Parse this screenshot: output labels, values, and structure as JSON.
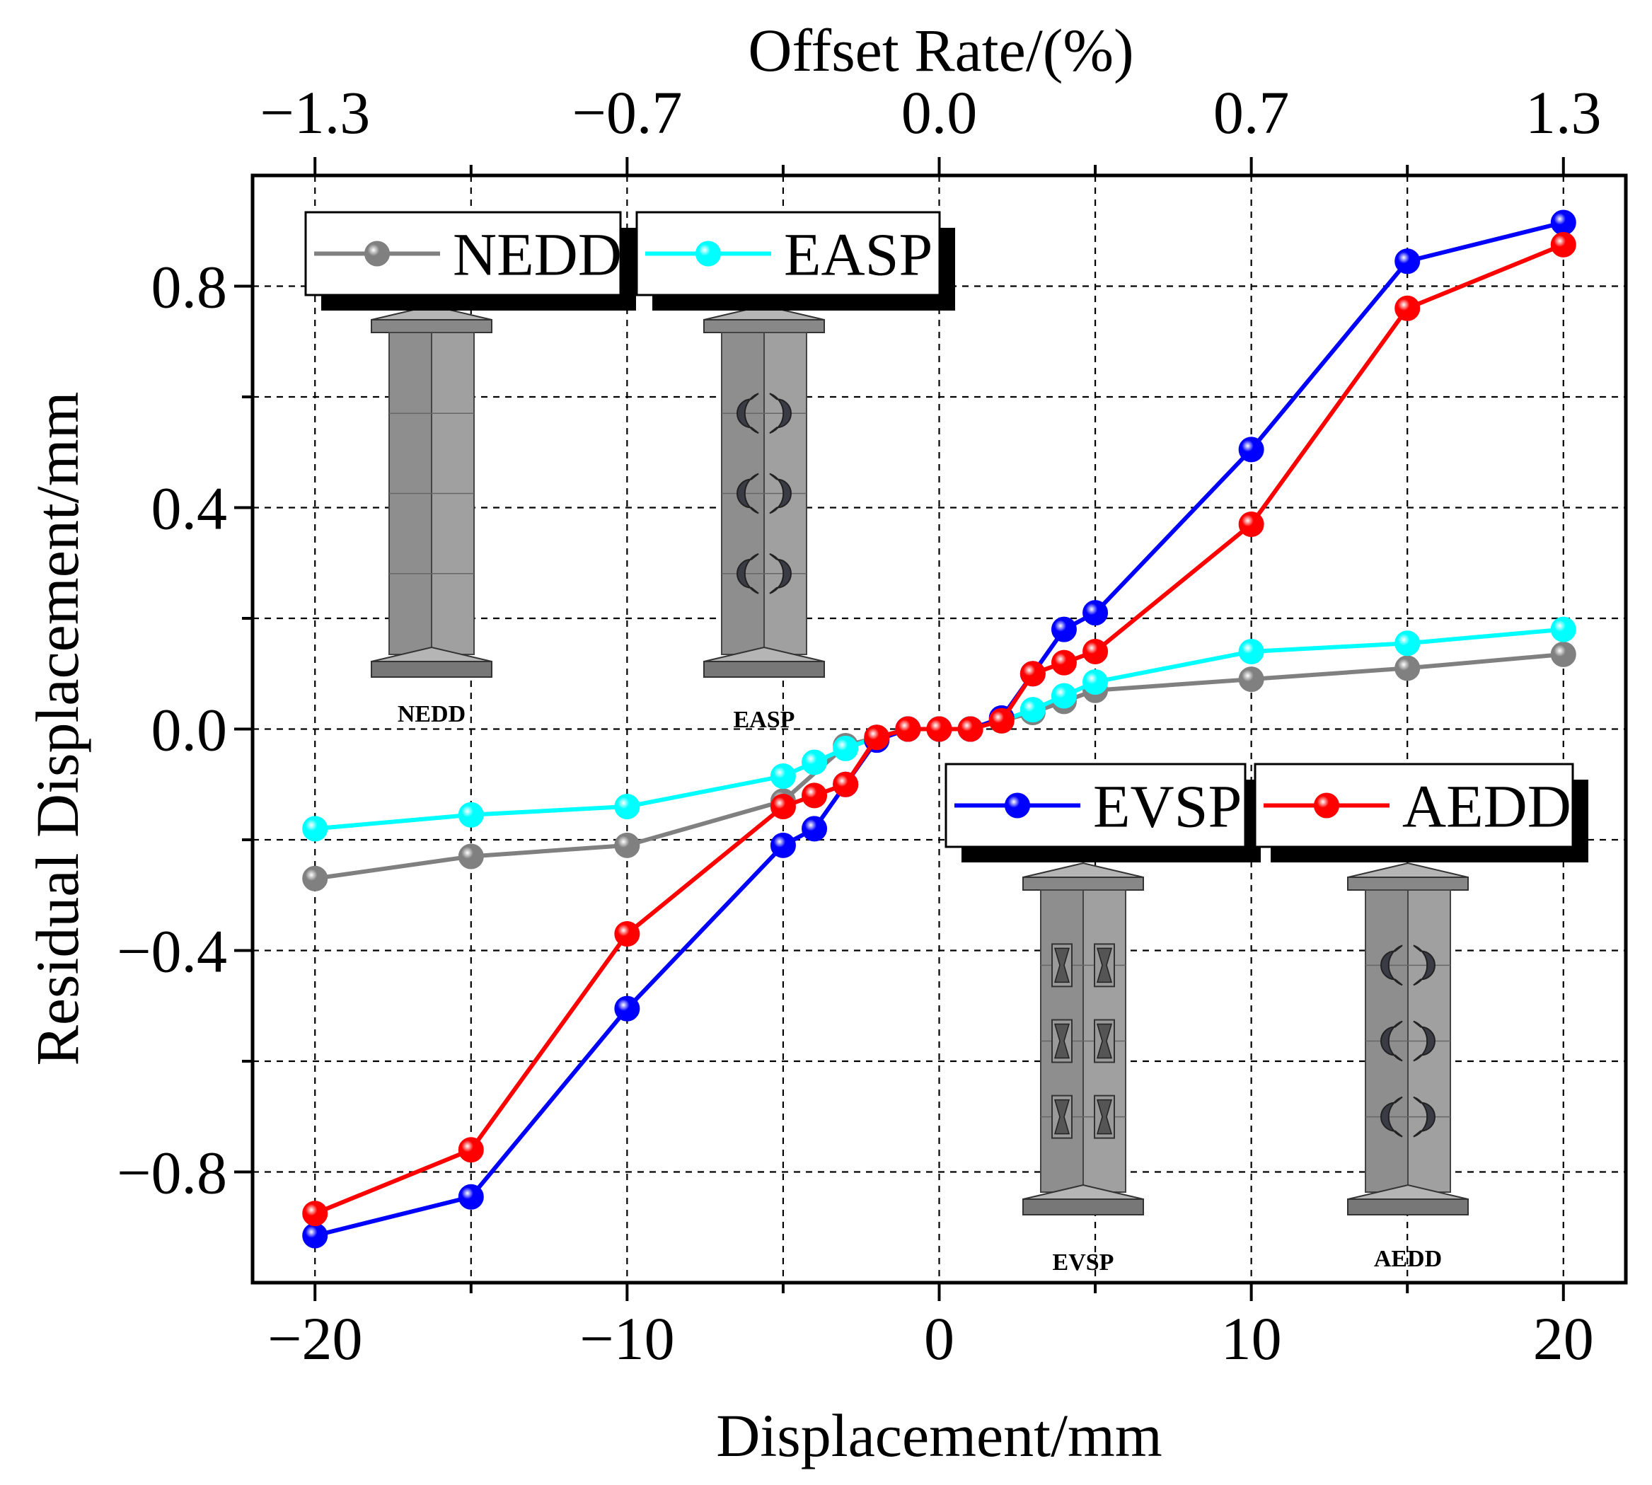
{
  "chart_data": {
    "type": "line",
    "xlabel": "Displacement/mm",
    "ylabel": "Residual Displacement/mm",
    "top_xlabel": "Offset Rate/(%)",
    "xlim": [
      -22,
      22
    ],
    "ylim": [
      -1.0,
      1.0
    ],
    "x_ticks": [
      -20,
      -10,
      0,
      10,
      20
    ],
    "x_tick_labels": [
      "−20",
      "−10",
      "0",
      "10",
      "20"
    ],
    "y_ticks": [
      -0.8,
      -0.4,
      0.0,
      0.4,
      0.8
    ],
    "y_tick_labels": [
      "−0.8",
      "−0.4",
      "0.0",
      "0.4",
      "0.8"
    ],
    "top_ticks": [
      -20,
      -10,
      0,
      10,
      20
    ],
    "top_tick_labels": [
      "−1.3",
      "−0.7",
      "0.0",
      "0.7",
      "1.3"
    ],
    "grid": true,
    "series": [
      {
        "name": "NEDD",
        "color": "#808080",
        "x": [
          -20,
          -15,
          -10,
          -5,
          -3,
          -2,
          -1,
          0,
          1,
          2,
          3,
          4,
          5,
          10,
          15,
          20
        ],
        "y": [
          -0.27,
          -0.23,
          -0.21,
          -0.13,
          -0.03,
          -0.015,
          0.0,
          0.0,
          0.0,
          0.015,
          0.03,
          0.05,
          0.07,
          0.09,
          0.11,
          0.135
        ]
      },
      {
        "name": "EASP",
        "color": "#00ffff",
        "x": [
          -20,
          -15,
          -10,
          -5,
          -4,
          -3,
          -2,
          -1,
          0,
          1,
          2,
          3,
          4,
          5,
          10,
          15,
          20
        ],
        "y": [
          -0.18,
          -0.155,
          -0.14,
          -0.085,
          -0.06,
          -0.035,
          -0.015,
          0.0,
          0.0,
          0.0,
          0.015,
          0.035,
          0.06,
          0.085,
          0.14,
          0.155,
          0.18
        ]
      },
      {
        "name": "EVSP",
        "color": "#0000ff",
        "x": [
          -20,
          -15,
          -10,
          -5,
          -4,
          -3,
          -2,
          -1,
          0,
          1,
          2,
          3,
          4,
          5,
          10,
          15,
          20
        ],
        "y": [
          -0.915,
          -0.845,
          -0.505,
          -0.21,
          -0.18,
          -0.1,
          -0.02,
          0.0,
          0.0,
          0.0,
          0.02,
          0.1,
          0.18,
          0.21,
          0.505,
          0.845,
          0.915
        ]
      },
      {
        "name": "AEDD",
        "color": "#ff0000",
        "x": [
          -20,
          -15,
          -10,
          -5,
          -4,
          -3,
          -2,
          -1,
          0,
          1,
          2,
          3,
          4,
          5,
          10,
          15,
          20
        ],
        "y": [
          -0.875,
          -0.76,
          -0.37,
          -0.14,
          -0.12,
          -0.1,
          -0.015,
          0.0,
          0.0,
          0.0,
          0.015,
          0.1,
          0.12,
          0.14,
          0.37,
          0.76,
          0.875
        ]
      }
    ],
    "inset_labels": [
      "NEDD",
      "EASP",
      "EVSP",
      "AEDD"
    ]
  }
}
